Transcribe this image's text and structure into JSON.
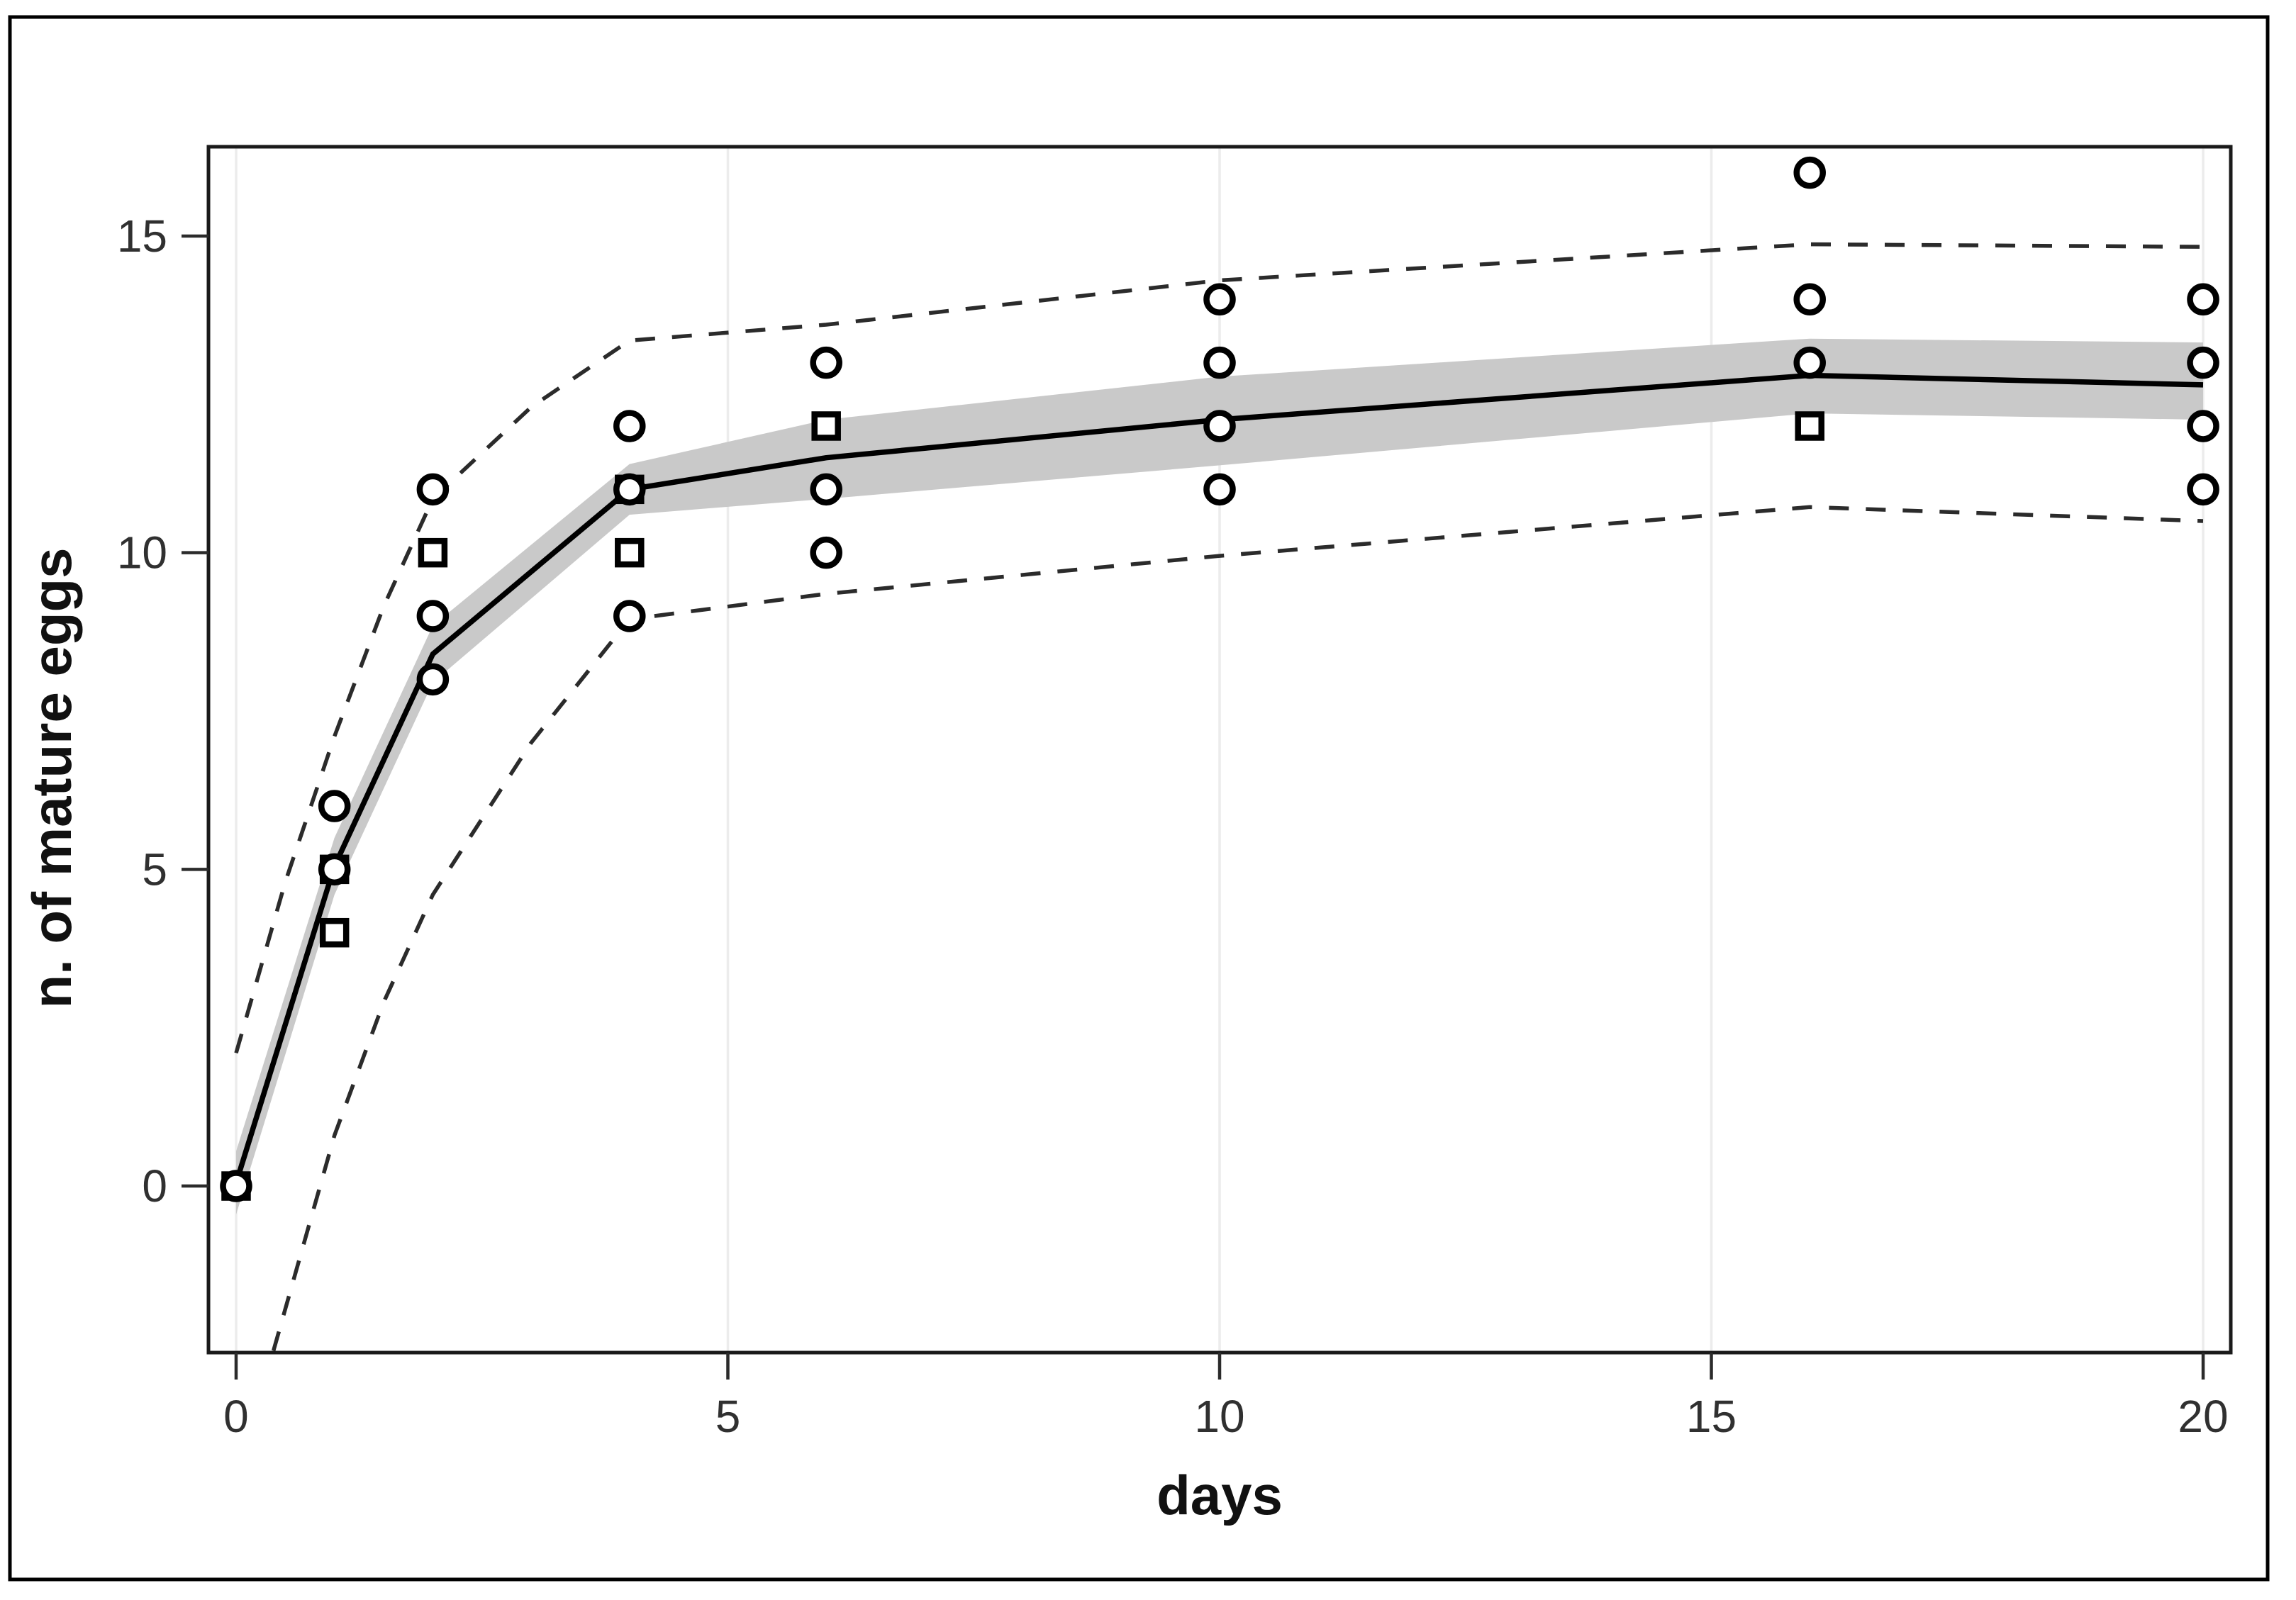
{
  "chart_data": {
    "type": "scatter",
    "title": "",
    "xlabel": "days",
    "ylabel": "n. of mature eggs",
    "x_ticks": [
      0,
      5,
      10,
      15,
      20
    ],
    "y_ticks": [
      0,
      5,
      10,
      15
    ],
    "xlim": [
      -0.281,
      20.281
    ],
    "ylim": [
      -2.63,
      16.41
    ],
    "grid": "vertical-only",
    "legend_position": "none",
    "colors": {
      "band": "#c9c9c9",
      "mean_line": "#000000",
      "dashed_line": "#2b2b2b",
      "gridline": "#ececec",
      "panel_border": "#1a1a1a",
      "figure_border": "#000000",
      "point_stroke": "#000000",
      "point_fill": "#ffffff"
    },
    "points": [
      {
        "x": 0,
        "y": 0,
        "glyph": "square"
      },
      {
        "x": 0,
        "y": 0,
        "glyph": "circle"
      },
      {
        "x": 1,
        "y": 6,
        "glyph": "circle"
      },
      {
        "x": 1,
        "y": 5,
        "glyph": "square"
      },
      {
        "x": 1,
        "y": 5,
        "glyph": "circle"
      },
      {
        "x": 1,
        "y": 4,
        "glyph": "square"
      },
      {
        "x": 2,
        "y": 11,
        "glyph": "circle"
      },
      {
        "x": 2,
        "y": 10,
        "glyph": "square"
      },
      {
        "x": 2,
        "y": 9,
        "glyph": "circle"
      },
      {
        "x": 2,
        "y": 8,
        "glyph": "circle"
      },
      {
        "x": 4,
        "y": 12,
        "glyph": "circle"
      },
      {
        "x": 4,
        "y": 11,
        "glyph": "square"
      },
      {
        "x": 4,
        "y": 11,
        "glyph": "circle"
      },
      {
        "x": 4,
        "y": 10,
        "glyph": "square"
      },
      {
        "x": 4,
        "y": 9,
        "glyph": "circle"
      },
      {
        "x": 6,
        "y": 13,
        "glyph": "circle"
      },
      {
        "x": 6,
        "y": 12,
        "glyph": "square"
      },
      {
        "x": 6,
        "y": 11,
        "glyph": "circle"
      },
      {
        "x": 6,
        "y": 10,
        "glyph": "circle"
      },
      {
        "x": 10,
        "y": 14,
        "glyph": "circle"
      },
      {
        "x": 10,
        "y": 13,
        "glyph": "circle"
      },
      {
        "x": 10,
        "y": 12,
        "glyph": "circle"
      },
      {
        "x": 10,
        "y": 11,
        "glyph": "circle"
      },
      {
        "x": 16,
        "y": 16,
        "glyph": "circle"
      },
      {
        "x": 16,
        "y": 14,
        "glyph": "circle"
      },
      {
        "x": 16,
        "y": 13,
        "glyph": "circle"
      },
      {
        "x": 16,
        "y": 12,
        "glyph": "square"
      },
      {
        "x": 20,
        "y": 14,
        "glyph": "circle"
      },
      {
        "x": 20,
        "y": 13,
        "glyph": "circle"
      },
      {
        "x": 20,
        "y": 12,
        "glyph": "circle"
      },
      {
        "x": 20,
        "y": 11,
        "glyph": "circle"
      }
    ],
    "series": [
      {
        "name": "fitted-mean",
        "style": "solid",
        "points": [
          [
            0,
            0.05
          ],
          [
            1,
            5.05
          ],
          [
            2,
            8.4
          ],
          [
            4,
            11.0
          ],
          [
            6,
            11.5
          ],
          [
            10,
            12.1
          ],
          [
            16,
            12.8
          ],
          [
            20,
            12.65
          ]
        ]
      },
      {
        "name": "upper-prediction-limit",
        "style": "dashed",
        "points": [
          [
            0,
            2.1
          ],
          [
            0.5,
            4.8
          ],
          [
            1,
            7.1
          ],
          [
            1.5,
            9.15
          ],
          [
            2,
            10.85
          ],
          [
            3,
            12.3
          ],
          [
            4,
            13.35
          ],
          [
            6,
            13.6
          ],
          [
            10,
            14.3
          ],
          [
            16,
            14.87
          ],
          [
            20,
            14.83
          ]
        ]
      },
      {
        "name": "lower-prediction-limit",
        "style": "dashed",
        "points": [
          [
            0.38,
            -2.6
          ],
          [
            1,
            0.8
          ],
          [
            1.5,
            2.9
          ],
          [
            2,
            4.6
          ],
          [
            3,
            7.0
          ],
          [
            4,
            8.95
          ],
          [
            6,
            9.35
          ],
          [
            10,
            9.95
          ],
          [
            16,
            10.72
          ],
          [
            20,
            10.5
          ]
        ]
      }
    ],
    "confidence_band": {
      "upper": [
        [
          0,
          0.55
        ],
        [
          1,
          5.5
        ],
        [
          2,
          8.85
        ],
        [
          4,
          11.4
        ],
        [
          6,
          12.1
        ],
        [
          10,
          12.78
        ],
        [
          16,
          13.38
        ],
        [
          20,
          13.32
        ]
      ],
      "lower": [
        [
          0,
          -0.45
        ],
        [
          1,
          4.6
        ],
        [
          2,
          7.95
        ],
        [
          4,
          10.6
        ],
        [
          6,
          10.85
        ],
        [
          10,
          11.38
        ],
        [
          16,
          12.2
        ],
        [
          20,
          12.1
        ]
      ]
    }
  }
}
